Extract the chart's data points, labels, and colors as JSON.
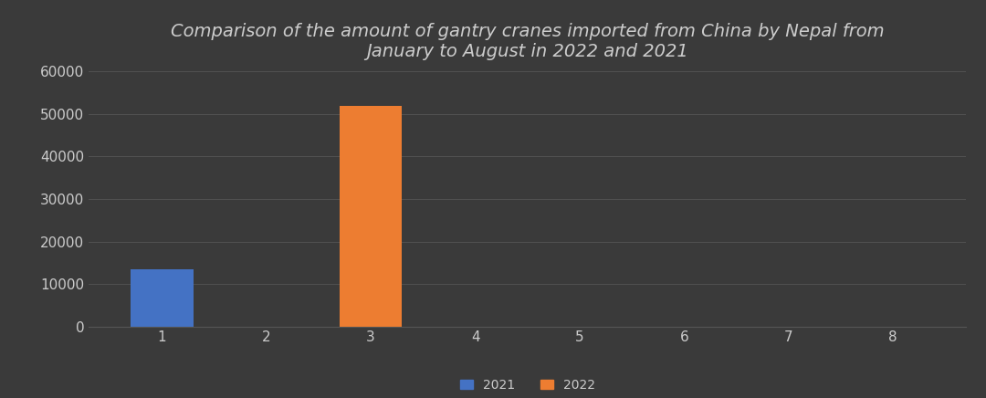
{
  "title": "Comparison of the amount of gantry cranes imported from China by Nepal from\nJanuary to August in 2022 and 2021",
  "months": [
    1,
    2,
    3,
    4,
    5,
    6,
    7,
    8
  ],
  "values_2021": [
    13500,
    0,
    0,
    0,
    0,
    0,
    0,
    0
  ],
  "values_2022": [
    0,
    0,
    52000,
    0,
    0,
    0,
    0,
    0
  ],
  "color_2021": "#4472C4",
  "color_2022": "#ED7D31",
  "background_color": "#3a3a3a",
  "axes_background": "#3a3a3a",
  "text_color": "#CCCCCC",
  "grid_color": "#555555",
  "ylim": [
    0,
    60000
  ],
  "yticks": [
    0,
    10000,
    20000,
    30000,
    40000,
    50000,
    60000
  ],
  "title_fontsize": 14,
  "legend_labels": [
    "2021",
    "2022"
  ],
  "bar_width": 0.6
}
